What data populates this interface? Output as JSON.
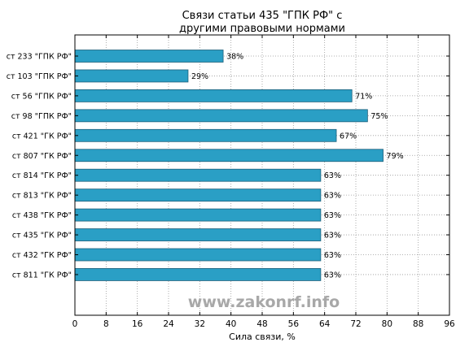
{
  "chart_data": {
    "type": "bar",
    "orientation": "horizontal",
    "title_lines": [
      "Связи статьи 435 \"ГПК РФ\" с",
      "другими правовыми нормами"
    ],
    "xlabel": "Сила связи, %",
    "ylabel": "",
    "xlim": [
      0,
      96
    ],
    "xticks": [
      0,
      8,
      16,
      24,
      32,
      40,
      48,
      56,
      64,
      72,
      80,
      88,
      96
    ],
    "grid": true,
    "categories": [
      "ст 233 \"ГПК РФ\"",
      "ст 103 \"ГПК РФ\"",
      "ст 56 \"ГПК РФ\"",
      "ст 98 \"ГПК РФ\"",
      "ст 421 \"ГК РФ\"",
      "ст 807 \"ГК РФ\"",
      "ст 814 \"ГК РФ\"",
      "ст 813 \"ГК РФ\"",
      "ст 438 \"ГК РФ\"",
      "ст 435 \"ГК РФ\"",
      "ст 432 \"ГК РФ\"",
      "ст 811 \"ГК РФ\""
    ],
    "values": [
      38,
      29,
      71,
      75,
      67,
      79,
      63,
      63,
      63,
      63,
      63,
      63
    ],
    "value_labels": [
      "38%",
      "29%",
      "71%",
      "75%",
      "67%",
      "79%",
      "63%",
      "63%",
      "63%",
      "63%",
      "63%",
      "63%"
    ],
    "bar_color": "#2a9fc5",
    "bar_edge_color": "#1d5f7a"
  },
  "watermark": "www.zakonrf.info"
}
